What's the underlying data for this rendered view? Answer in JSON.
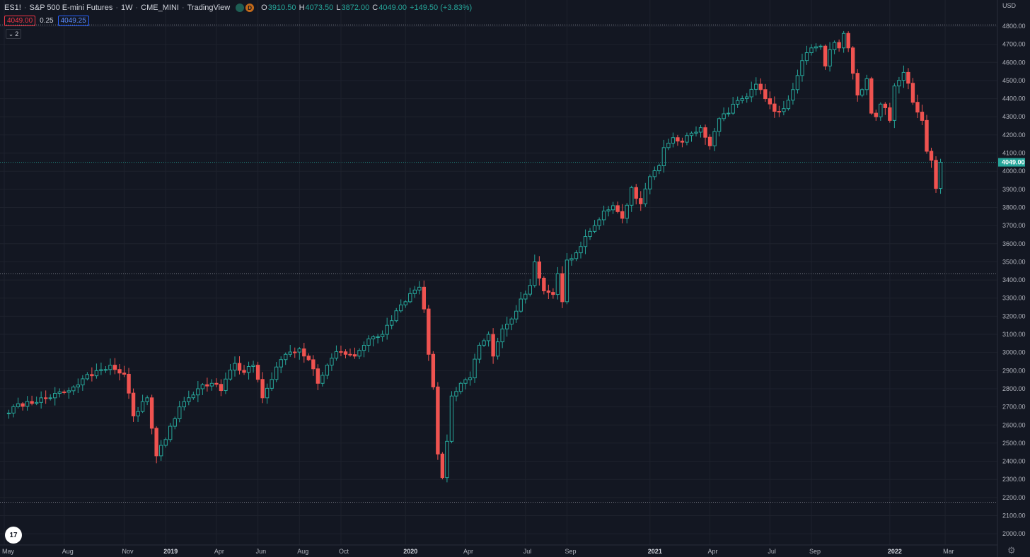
{
  "header": {
    "symbol": "ES1!",
    "name": "S&P 500 E-mini Futures",
    "interval": "1W",
    "exchange": "CME_MINI",
    "source": "TradingView",
    "badge_d": "D",
    "o_label": "O",
    "o_value": "3910.50",
    "h_label": "H",
    "h_value": "4073.50",
    "l_label": "L",
    "l_value": "3872.00",
    "c_label": "C",
    "c_value": "4049.00",
    "change": "+149.50 (+3.83%)",
    "bid": "4049.00",
    "spread": "0.25",
    "ask": "4049.25",
    "collapse_count": "2",
    "currency": "USD"
  },
  "logo_text": "17",
  "colors": {
    "background": "#131722",
    "up": "#26a69a",
    "down": "#ef5350",
    "grid": "#1e222d",
    "text": "#b2b5be",
    "price_tag": "#26a69a"
  },
  "chart_data": {
    "type": "candlestick",
    "interval": "1W",
    "ylim": [
      1950,
      4830
    ],
    "y_ticks": [
      2000,
      2100,
      2200,
      2300,
      2400,
      2500,
      2600,
      2700,
      2800,
      2900,
      3000,
      3100,
      3200,
      3300,
      3400,
      3500,
      3600,
      3700,
      3800,
      3900,
      4000,
      4100,
      4200,
      4300,
      4400,
      4500,
      4600,
      4700,
      4800
    ],
    "x_tick_labels": [
      "May",
      "Aug",
      "Nov",
      "2019",
      "Apr",
      "Jun",
      "Aug",
      "Oct",
      "2020",
      "Apr",
      "Jul",
      "Sep",
      "2021",
      "Apr",
      "Jul",
      "Sep",
      "2022",
      "Mar"
    ],
    "x_tick_weeks": [
      0,
      13,
      26,
      35,
      46,
      55,
      64,
      73,
      87,
      100,
      113,
      122,
      140,
      153,
      166,
      175,
      192,
      204
    ],
    "last_price": "4049.00",
    "horizontal_lines": [
      4807,
      3435,
      2174
    ],
    "close_anchors": [
      [
        0,
        2665
      ],
      [
        5,
        2730
      ],
      [
        10,
        2750
      ],
      [
        15,
        2810
      ],
      [
        20,
        2900
      ],
      [
        23,
        2930
      ],
      [
        26,
        2880
      ],
      [
        28,
        2650
      ],
      [
        31,
        2750
      ],
      [
        33,
        2430
      ],
      [
        35,
        2520
      ],
      [
        38,
        2700
      ],
      [
        42,
        2800
      ],
      [
        45,
        2830
      ],
      [
        47,
        2790
      ],
      [
        50,
        2940
      ],
      [
        52,
        2890
      ],
      [
        54,
        2930
      ],
      [
        56,
        2750
      ],
      [
        59,
        2920
      ],
      [
        61,
        2990
      ],
      [
        64,
        3020
      ],
      [
        66,
        2960
      ],
      [
        68,
        2830
      ],
      [
        70,
        2930
      ],
      [
        72,
        3005
      ],
      [
        74,
        2990
      ],
      [
        76,
        2980
      ],
      [
        79,
        3075
      ],
      [
        82,
        3100
      ],
      [
        85,
        3230
      ],
      [
        88,
        3325
      ],
      [
        90,
        3360
      ],
      [
        91,
        3240
      ],
      [
        92,
        2990
      ],
      [
        93,
        2810
      ],
      [
        94,
        2440
      ],
      [
        95,
        2310
      ],
      [
        96,
        2510
      ],
      [
        97,
        2760
      ],
      [
        99,
        2830
      ],
      [
        101,
        2860
      ],
      [
        103,
        3040
      ],
      [
        105,
        3100
      ],
      [
        106,
        2980
      ],
      [
        108,
        3130
      ],
      [
        110,
        3185
      ],
      [
        112,
        3295
      ],
      [
        114,
        3370
      ],
      [
        115,
        3500
      ],
      [
        116,
        3410
      ],
      [
        117,
        3340
      ],
      [
        119,
        3320
      ],
      [
        120,
        3435
      ],
      [
        121,
        3280
      ],
      [
        122,
        3510
      ],
      [
        124,
        3550
      ],
      [
        126,
        3640
      ],
      [
        128,
        3700
      ],
      [
        130,
        3780
      ],
      [
        132,
        3810
      ],
      [
        134,
        3740
      ],
      [
        136,
        3910
      ],
      [
        137,
        3850
      ],
      [
        138,
        3820
      ],
      [
        140,
        3970
      ],
      [
        142,
        4030
      ],
      [
        143,
        4130
      ],
      [
        145,
        4185
      ],
      [
        147,
        4160
      ],
      [
        149,
        4210
      ],
      [
        151,
        4240
      ],
      [
        153,
        4140
      ],
      [
        155,
        4290
      ],
      [
        157,
        4320
      ],
      [
        159,
        4390
      ],
      [
        161,
        4410
      ],
      [
        163,
        4480
      ],
      [
        164,
        4450
      ],
      [
        165,
        4400
      ],
      [
        167,
        4330
      ],
      [
        169,
        4345
      ],
      [
        171,
        4450
      ],
      [
        173,
        4610
      ],
      [
        175,
        4680
      ],
      [
        177,
        4690
      ],
      [
        178,
        4580
      ],
      [
        179,
        4670
      ],
      [
        180,
        4710
      ],
      [
        181,
        4680
      ],
      [
        182,
        4760
      ],
      [
        183,
        4680
      ],
      [
        184,
        4540
      ],
      [
        185,
        4420
      ],
      [
        186,
        4450
      ],
      [
        187,
        4510
      ],
      [
        188,
        4320
      ],
      [
        189,
        4300
      ],
      [
        190,
        4370
      ],
      [
        191,
        4350
      ],
      [
        192,
        4280
      ],
      [
        193,
        4470
      ],
      [
        195,
        4545
      ],
      [
        196,
        4485
      ],
      [
        197,
        4380
      ],
      [
        199,
        4280
      ],
      [
        200,
        4110
      ],
      [
        201,
        4060
      ],
      [
        202,
        3905
      ],
      [
        203,
        4049
      ]
    ]
  }
}
